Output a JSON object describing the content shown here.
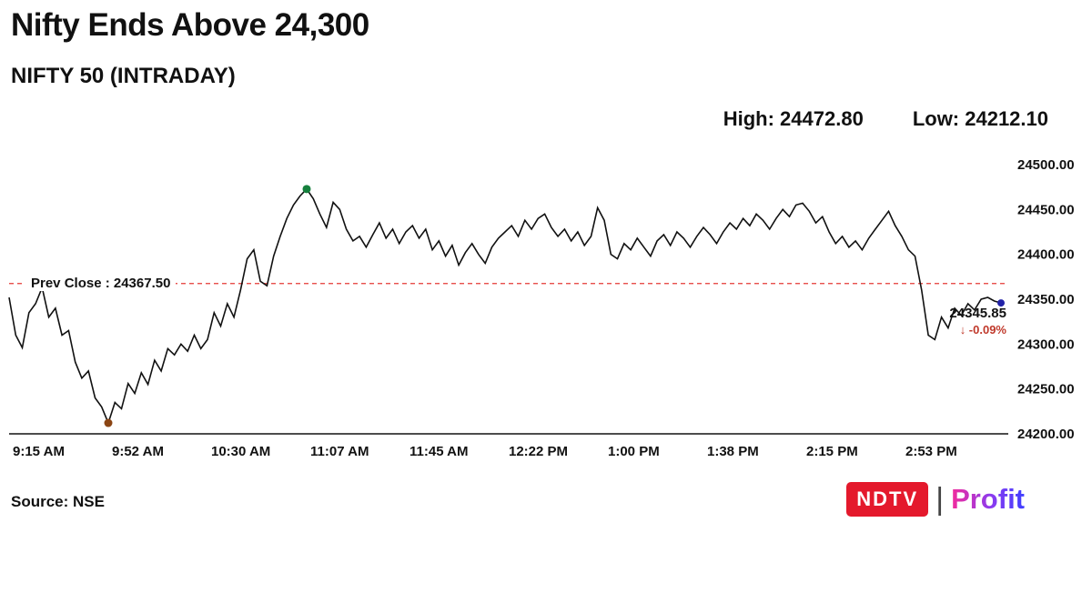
{
  "header": {
    "title": "Nifty Ends Above 24,300",
    "subtitle": "NIFTY 50 (INTRADAY)",
    "high_label": "High: 24472.80",
    "low_label": "Low: 24212.10"
  },
  "footer": {
    "source": "Source: NSE",
    "logo": {
      "ndtv": "NDTV",
      "separator": "|",
      "profit": "Profit"
    }
  },
  "chart_data": {
    "type": "line",
    "title": "NIFTY 50 (INTRADAY)",
    "xlabel": "",
    "ylabel": "",
    "ylim": [
      24200,
      24500
    ],
    "grid": false,
    "y_ticks": [
      24500,
      24450,
      24400,
      24350,
      24300,
      24250,
      24200
    ],
    "x_ticks": [
      "9:15 AM",
      "9:52 AM",
      "10:30 AM",
      "11:07 AM",
      "11:45 AM",
      "12:22 PM",
      "1:00 PM",
      "1:38 PM",
      "2:15 PM",
      "2:53 PM"
    ],
    "prev_close": 24367.5,
    "prev_close_label": "Prev Close : 24367.50",
    "high": 24472.8,
    "low": 24212.1,
    "last": 24345.85,
    "last_label": "24345.85",
    "change_label": "↓ -0.09%",
    "line_color": "#111111",
    "prev_close_color": "#e53935",
    "markers": {
      "high_color": "#15803d",
      "low_color": "#8b4513",
      "last_color": "#2323a8"
    },
    "values": [
      24352,
      24310,
      24296,
      24335,
      24345,
      24363,
      24330,
      24340,
      24310,
      24315,
      24280,
      24262,
      24270,
      24240,
      24230,
      24212.1,
      24235,
      24228,
      24256,
      24245,
      24268,
      24255,
      24282,
      24270,
      24295,
      24288,
      24300,
      24292,
      24310,
      24295,
      24305,
      24335,
      24320,
      24345,
      24330,
      24360,
      24395,
      24405,
      24370,
      24365,
      24398,
      24420,
      24440,
      24455,
      24465,
      24472.8,
      24462,
      24445,
      24430,
      24458,
      24450,
      24428,
      24415,
      24420,
      24408,
      24422,
      24435,
      24418,
      24428,
      24412,
      24425,
      24432,
      24418,
      24428,
      24405,
      24415,
      24398,
      24410,
      24388,
      24402,
      24412,
      24400,
      24390,
      24408,
      24418,
      24425,
      24432,
      24420,
      24438,
      24428,
      24440,
      24445,
      24430,
      24420,
      24428,
      24415,
      24425,
      24410,
      24420,
      24452,
      24438,
      24400,
      24395,
      24412,
      24405,
      24418,
      24408,
      24398,
      24415,
      24422,
      24410,
      24425,
      24418,
      24408,
      24420,
      24430,
      24422,
      24412,
      24425,
      24435,
      24428,
      24440,
      24432,
      24445,
      24438,
      24428,
      24440,
      24450,
      24442,
      24455,
      24457,
      24448,
      24435,
      24442,
      24425,
      24412,
      24420,
      24408,
      24415,
      24405,
      24418,
      24428,
      24438,
      24448,
      24432,
      24420,
      24405,
      24398,
      24360,
      24310,
      24305,
      24330,
      24318,
      24340,
      24332,
      24345,
      24338,
      24350,
      24352,
      24348,
      24345.85
    ]
  }
}
